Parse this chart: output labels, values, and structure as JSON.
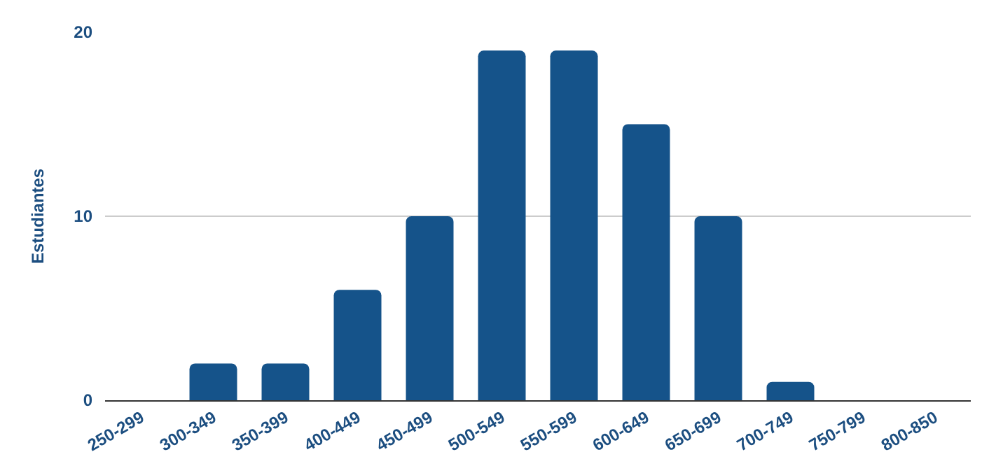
{
  "chart_data": {
    "type": "bar",
    "ylabel": "Estudiantes",
    "categories": [
      "250-299",
      "300-349",
      "350-399",
      "400-449",
      "450-499",
      "500-549",
      "550-599",
      "600-649",
      "650-699",
      "700-749",
      "750-799",
      "800-850"
    ],
    "values": [
      0,
      2,
      2,
      6,
      10,
      19,
      19,
      15,
      10,
      1,
      0,
      0
    ],
    "color": "#15538a",
    "ylim": [
      0,
      20
    ],
    "yticks": [
      0,
      10,
      20
    ],
    "grid": "y",
    "legend": false
  }
}
